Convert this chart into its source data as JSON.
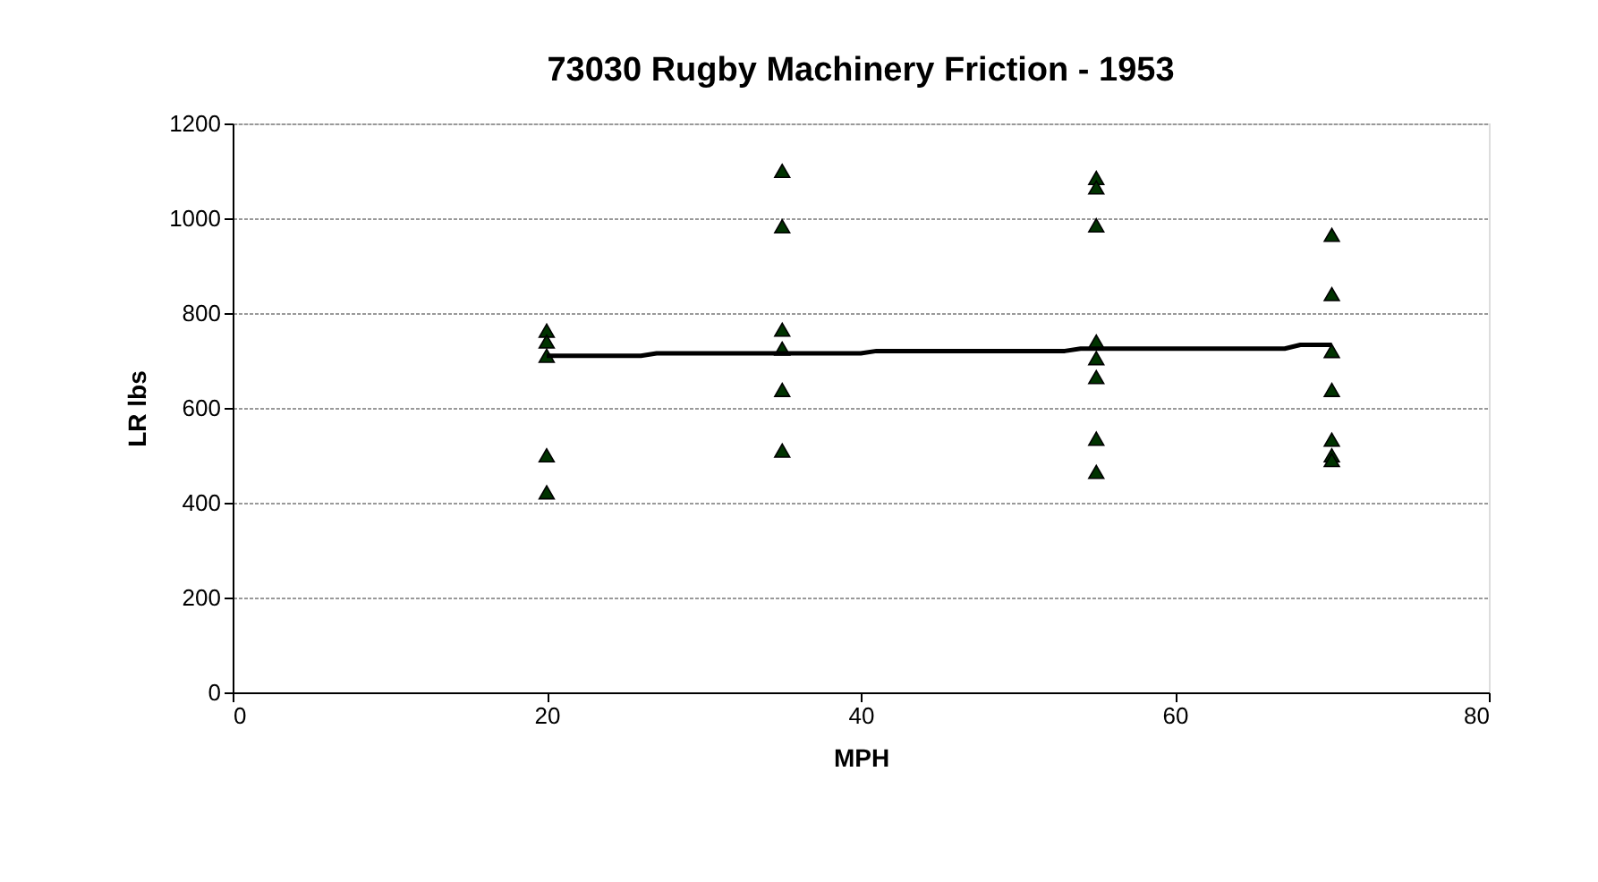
{
  "chart_data": {
    "type": "scatter",
    "title": "73030 Rugby Machinery Friction - 1953",
    "xlabel": "MPH",
    "ylabel": "LR lbs",
    "xlim": [
      0,
      80
    ],
    "xticks": [
      0,
      20,
      40,
      60,
      80
    ],
    "ylim": [
      0,
      1200
    ],
    "yticks": [
      0,
      200,
      400,
      600,
      800,
      1000,
      1200
    ],
    "grid": "y",
    "series": [
      {
        "type": "scatter",
        "marker": "triangle",
        "color": "#003300",
        "x": [
          20,
          20,
          20,
          20,
          20,
          35,
          35,
          35,
          35,
          35,
          35,
          55,
          55,
          55,
          55,
          55,
          55,
          55,
          55,
          70,
          70,
          70,
          70,
          70,
          70,
          70
        ],
        "values": [
          763,
          740,
          710,
          500,
          422,
          1100,
          983,
          765,
          725,
          638,
          510,
          1085,
          1065,
          985,
          740,
          705,
          665,
          535,
          465,
          965,
          840,
          720,
          638,
          533,
          500,
          490
        ]
      },
      {
        "type": "line",
        "marker": "none",
        "line_style": "solid",
        "color": "#000000",
        "x": [
          20,
          26,
          27,
          40,
          41,
          53,
          54,
          67,
          68,
          70
        ],
        "values": [
          710,
          710,
          715,
          715,
          720,
          720,
          725,
          725,
          733,
          733
        ]
      }
    ]
  }
}
